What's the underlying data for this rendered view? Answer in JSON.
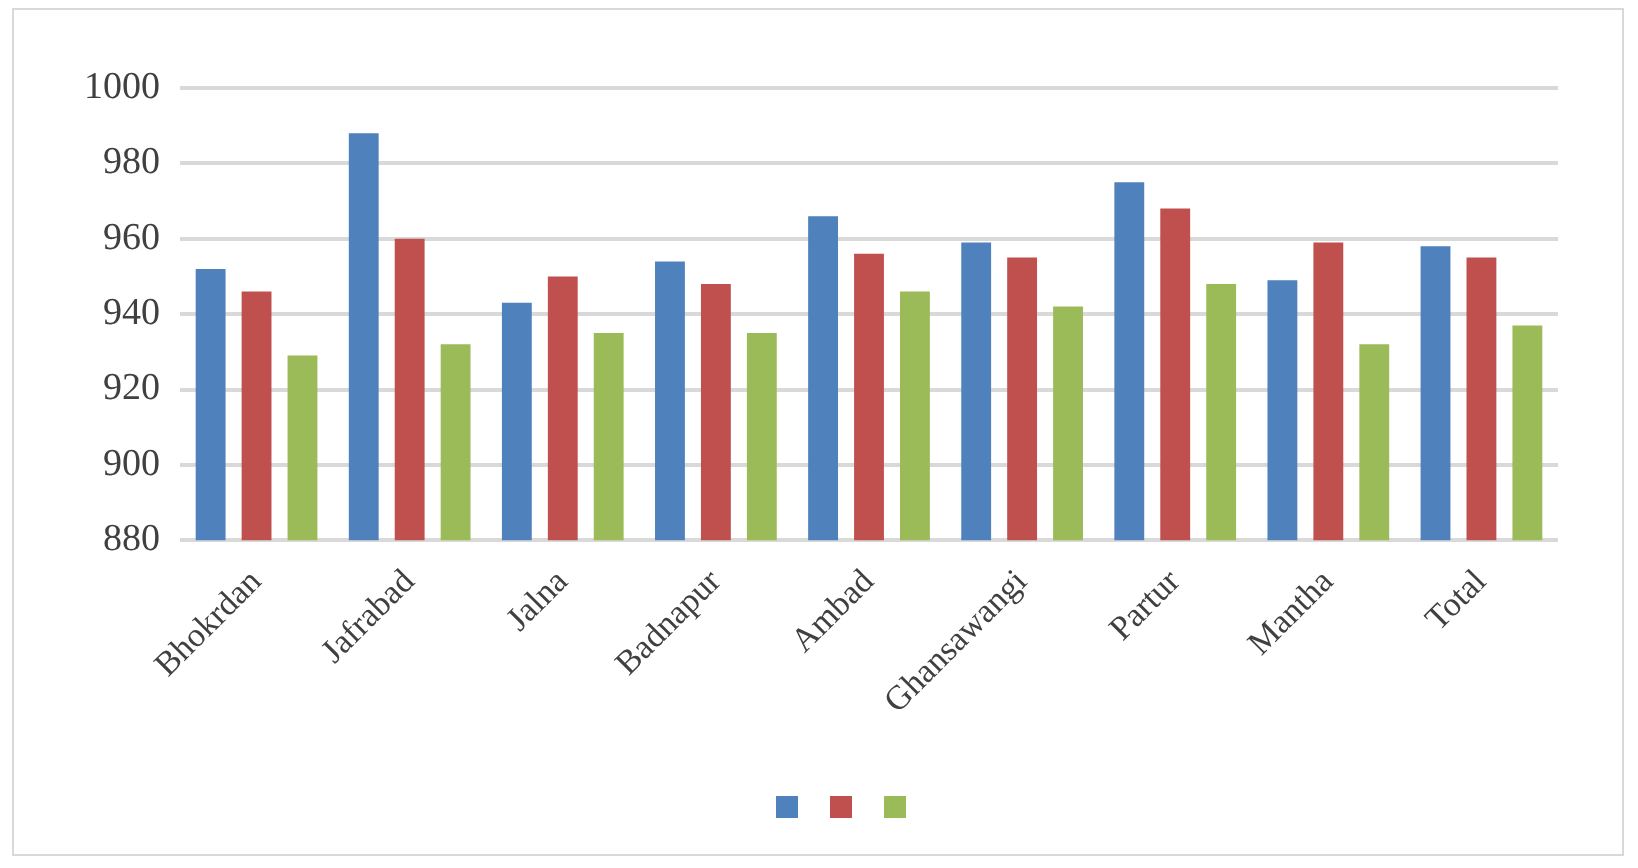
{
  "chart_data": {
    "type": "bar",
    "categories": [
      "Bhokrdan",
      "Jafrabad",
      "Jalna",
      "Badnapur",
      "Ambad",
      "Ghansawangi",
      "Partur",
      "Mantha",
      "Total"
    ],
    "series": [
      {
        "color": "#4f81bd",
        "values": [
          952,
          988,
          943,
          954,
          966,
          959,
          975,
          949,
          958
        ]
      },
      {
        "color": "#c0504d",
        "values": [
          946,
          960,
          950,
          948,
          956,
          955,
          968,
          959,
          955
        ]
      },
      {
        "color": "#9bbb59",
        "values": [
          929,
          932,
          935,
          935,
          946,
          942,
          948,
          932,
          937
        ]
      }
    ],
    "ylim": [
      880,
      1000
    ],
    "yticks": [
      880,
      900,
      920,
      940,
      960,
      980,
      1000
    ],
    "grid": "y"
  }
}
